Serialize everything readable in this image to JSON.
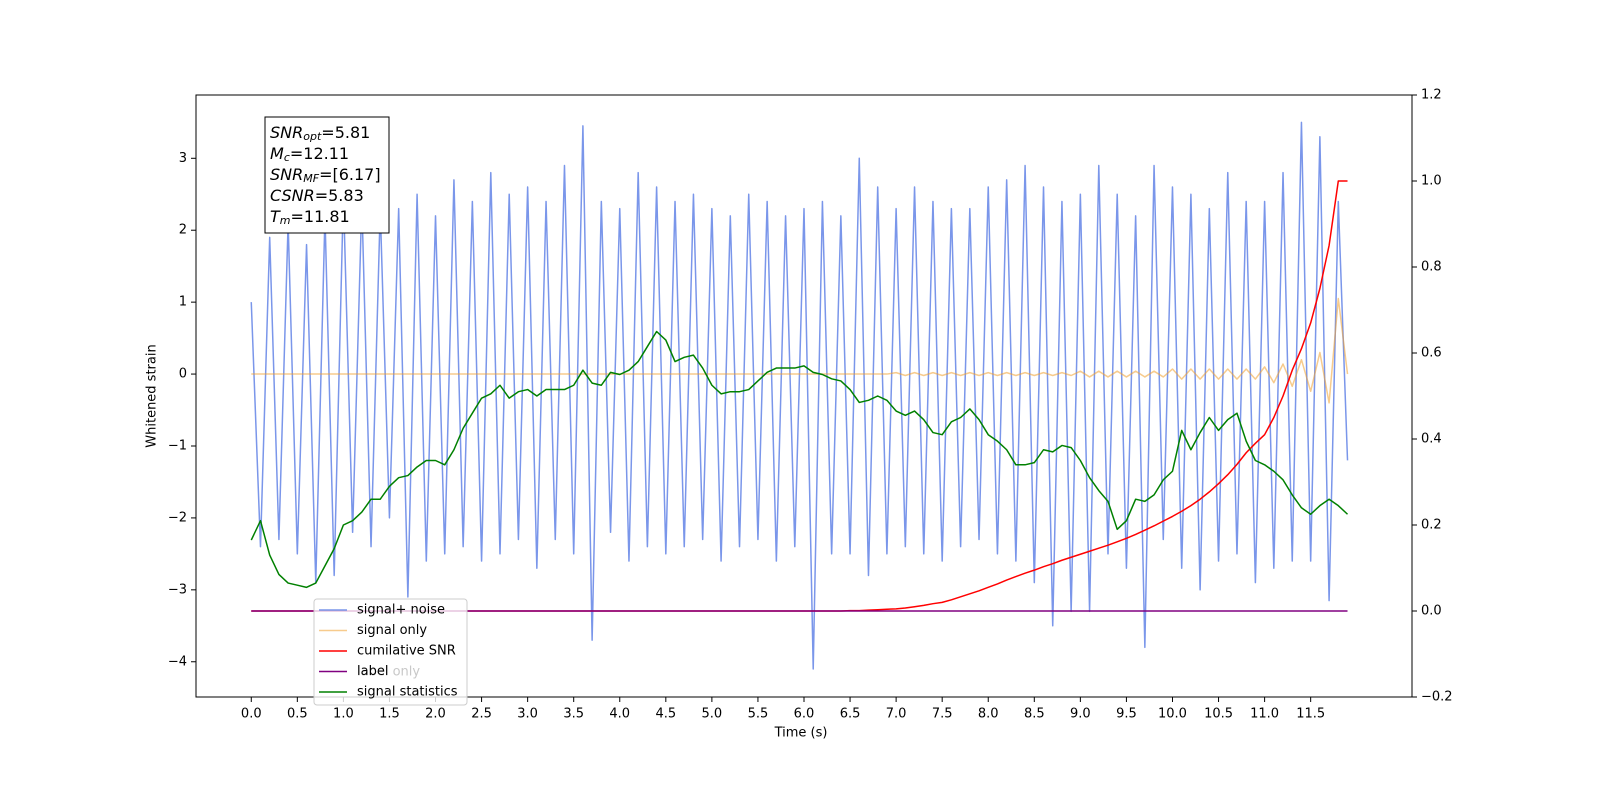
{
  "chart_data": {
    "type": "line",
    "xlabel": "Time (s)",
    "ylabel": "Whitened strain",
    "xlim": [
      -0.6,
      12.6
    ],
    "ylim": [
      -4.49,
      3.88
    ],
    "y2lim": [
      -0.2,
      1.2
    ],
    "xticks": [
      {
        "value": 0,
        "label": "0.0"
      },
      {
        "value": 0.5,
        "label": "0.5"
      },
      {
        "value": 1,
        "label": "1.0"
      },
      {
        "value": 1.5,
        "label": "1.5"
      },
      {
        "value": 2,
        "label": "2.0"
      },
      {
        "value": 2.5,
        "label": "2.5"
      },
      {
        "value": 3,
        "label": "3.0"
      },
      {
        "value": 3.5,
        "label": "3.5"
      },
      {
        "value": 4,
        "label": "4.0"
      },
      {
        "value": 4.5,
        "label": "4.5"
      },
      {
        "value": 5,
        "label": "5.0"
      },
      {
        "value": 5.5,
        "label": "5.5"
      },
      {
        "value": 6,
        "label": "6.0"
      },
      {
        "value": 6.5,
        "label": "6.5"
      },
      {
        "value": 7,
        "label": "7.0"
      },
      {
        "value": 7.5,
        "label": "7.5"
      },
      {
        "value": 8,
        "label": "8.0"
      },
      {
        "value": 8.5,
        "label": "8.5"
      },
      {
        "value": 9,
        "label": "9.0"
      },
      {
        "value": 9.5,
        "label": "9.5"
      },
      {
        "value": 10,
        "label": "10.0"
      },
      {
        "value": 10.5,
        "label": "10.5"
      },
      {
        "value": 11,
        "label": "11.0"
      },
      {
        "value": 11.5,
        "label": "11.5"
      }
    ],
    "yticks": [
      {
        "value": -4,
        "label": "−4"
      },
      {
        "value": -3,
        "label": "−3"
      },
      {
        "value": -2,
        "label": "−2"
      },
      {
        "value": -1,
        "label": "−1"
      },
      0,
      1,
      2,
      3
    ],
    "y2ticks": [
      {
        "value": -0.2,
        "label": "−0.2"
      },
      {
        "value": 0,
        "label": "0.0"
      },
      {
        "value": 0.2,
        "label": "0.2"
      },
      {
        "value": 0.4,
        "label": "0.4"
      },
      {
        "value": 0.6,
        "label": "0.6"
      },
      {
        "value": 0.8,
        "label": "0.8"
      },
      {
        "value": 1,
        "label": "1.0"
      },
      {
        "value": 1.2,
        "label": "1.2"
      }
    ],
    "annotation_box": [
      {
        "main": "SNR",
        "sub": "opt",
        "rest": "=5.81"
      },
      {
        "main": "M",
        "sub": "c",
        "rest": "=12.11"
      },
      {
        "main": "SNR",
        "sub": "MF",
        "rest": "=[6.17]"
      },
      {
        "main": "CSNR",
        "rest": "=5.83"
      },
      {
        "main": "T",
        "sub": "m",
        "rest": "=11.81"
      }
    ],
    "legend_ghost": "label only",
    "x": [
      0,
      0.1,
      0.2,
      0.3,
      0.4,
      0.5,
      0.6,
      0.7,
      0.8,
      0.9,
      1,
      1.1,
      1.2,
      1.3,
      1.4,
      1.5,
      1.6,
      1.7,
      1.8,
      1.9,
      2,
      2.1,
      2.2,
      2.3,
      2.4,
      2.5,
      2.6,
      2.7,
      2.8,
      2.9,
      3,
      3.1,
      3.2,
      3.3,
      3.4,
      3.5,
      3.6,
      3.7,
      3.8,
      3.9,
      4,
      4.1,
      4.2,
      4.3,
      4.4,
      4.5,
      4.6,
      4.7,
      4.8,
      4.9,
      5,
      5.1,
      5.2,
      5.3,
      5.4,
      5.5,
      5.6,
      5.7,
      5.8,
      5.9,
      6,
      6.1,
      6.2,
      6.3,
      6.4,
      6.5,
      6.6,
      6.7,
      6.8,
      6.9,
      7,
      7.1,
      7.2,
      7.3,
      7.4,
      7.5,
      7.6,
      7.7,
      7.8,
      7.9,
      8,
      8.1,
      8.2,
      8.3,
      8.4,
      8.5,
      8.6,
      8.7,
      8.8,
      8.9,
      9,
      9.1,
      9.2,
      9.3,
      9.4,
      9.5,
      9.6,
      9.7,
      9.8,
      9.9,
      10,
      10.1,
      10.2,
      10.3,
      10.4,
      10.5,
      10.6,
      10.7,
      10.8,
      10.9,
      11,
      11.1,
      11.2,
      11.3,
      11.4,
      11.5,
      11.6,
      11.7,
      11.8,
      11.9
    ],
    "series": [
      {
        "name": "signal+ noise",
        "color": "#4169e1",
        "opacity": 0.7,
        "values": [
          1.0,
          -2.4,
          1.9,
          -2.3,
          2.1,
          -2.5,
          1.8,
          -2.9,
          2.2,
          -2.8,
          2.5,
          -2.2,
          2.4,
          -2.4,
          2.3,
          -2.0,
          2.3,
          -3.1,
          2.5,
          -2.6,
          2.2,
          -2.5,
          2.7,
          -2.4,
          2.4,
          -2.6,
          2.8,
          -2.5,
          2.5,
          -2.3,
          2.6,
          -2.7,
          2.4,
          -2.3,
          2.9,
          -2.5,
          3.45,
          -3.7,
          2.4,
          -2.2,
          2.3,
          -2.6,
          2.8,
          -2.4,
          2.6,
          -2.5,
          2.4,
          -2.4,
          2.5,
          -2.3,
          2.3,
          -2.6,
          2.2,
          -2.4,
          2.5,
          -2.3,
          2.4,
          -2.6,
          2.2,
          -2.4,
          2.3,
          -4.1,
          2.4,
          -2.5,
          2.2,
          -2.5,
          3.0,
          -2.8,
          2.6,
          -2.5,
          2.3,
          -2.4,
          2.6,
          -2.5,
          2.4,
          -2.6,
          2.3,
          -2.4,
          2.3,
          -2.3,
          2.6,
          -2.5,
          2.7,
          -2.6,
          2.9,
          -2.9,
          2.6,
          -3.5,
          2.4,
          -3.3,
          2.5,
          -3.3,
          2.9,
          -2.5,
          2.5,
          -2.7,
          2.2,
          -3.8,
          2.9,
          -2.3,
          2.6,
          -2.7,
          2.5,
          -3.0,
          2.3,
          -2.6,
          2.8,
          -2.5,
          2.4,
          -2.9,
          2.4,
          -2.7,
          2.8,
          -2.6,
          3.5,
          -2.6,
          3.3,
          -3.15,
          2.4,
          -1.2
        ]
      },
      {
        "name": "signal only",
        "color": "#f0a030",
        "opacity": 0.55,
        "values": [
          0,
          0,
          0,
          0,
          0,
          0,
          0,
          0,
          0,
          0,
          0,
          0,
          0,
          0,
          0,
          0,
          0,
          0,
          0,
          0,
          0,
          0,
          0,
          0,
          0,
          0,
          0,
          0,
          0,
          0,
          0,
          0,
          0,
          0,
          0,
          0,
          0,
          0,
          0,
          0,
          0,
          0,
          0,
          0,
          0,
          0,
          0,
          0,
          0,
          0,
          0,
          0,
          0,
          0,
          0,
          0,
          0,
          0,
          0,
          0,
          0,
          0,
          0,
          0,
          0,
          0,
          0,
          0,
          0,
          0,
          0.02,
          -0.02,
          0.02,
          -0.02,
          0.02,
          -0.02,
          0.02,
          -0.02,
          0.02,
          -0.02,
          0.02,
          -0.02,
          0.02,
          -0.02,
          0.02,
          -0.02,
          0.02,
          -0.02,
          0.02,
          -0.02,
          0.04,
          -0.04,
          0.04,
          -0.04,
          0.04,
          -0.04,
          0.04,
          -0.04,
          0.04,
          -0.04,
          0.07,
          -0.07,
          0.07,
          -0.07,
          0.07,
          -0.07,
          0.07,
          -0.07,
          0.07,
          -0.07,
          0.1,
          -0.12,
          0.14,
          -0.17,
          0.2,
          -0.24,
          0.3,
          -0.4,
          1.05,
          0
        ]
      },
      {
        "name": "cumilative SNR",
        "color": "#ff0000",
        "axis": "y2",
        "values": [
          0,
          0,
          0,
          0,
          0,
          0,
          0,
          0,
          0,
          0,
          0,
          0,
          0,
          0,
          0,
          0,
          0,
          0,
          0,
          0,
          0,
          0,
          0,
          0,
          0,
          0,
          0,
          0,
          0,
          0,
          0,
          0,
          0,
          0,
          0,
          0,
          0,
          0,
          0,
          0,
          0,
          0,
          0,
          0,
          0,
          0,
          0,
          0,
          0,
          0,
          0,
          0,
          0,
          0,
          0,
          0,
          0,
          0,
          0,
          0,
          0,
          0,
          0,
          0,
          0,
          0.001,
          0.001,
          0.002,
          0.003,
          0.004,
          0.005,
          0.007,
          0.01,
          0.013,
          0.017,
          0.02,
          0.026,
          0.033,
          0.04,
          0.047,
          0.055,
          0.063,
          0.072,
          0.08,
          0.088,
          0.095,
          0.103,
          0.11,
          0.118,
          0.125,
          0.132,
          0.139,
          0.146,
          0.153,
          0.161,
          0.169,
          0.178,
          0.188,
          0.198,
          0.209,
          0.22,
          0.232,
          0.245,
          0.26,
          0.277,
          0.296,
          0.317,
          0.341,
          0.368,
          0.39,
          0.41,
          0.45,
          0.5,
          0.56,
          0.61,
          0.67,
          0.75,
          0.85,
          1.0,
          1.0
        ]
      },
      {
        "name": "label",
        "color": "#800080",
        "axis": "y2",
        "values": [
          0,
          0,
          0,
          0,
          0,
          0,
          0,
          0,
          0,
          0,
          0,
          0,
          0,
          0,
          0,
          0,
          0,
          0,
          0,
          0,
          0,
          0,
          0,
          0,
          0,
          0,
          0,
          0,
          0,
          0,
          0,
          0,
          0,
          0,
          0,
          0,
          0,
          0,
          0,
          0,
          0,
          0,
          0,
          0,
          0,
          0,
          0,
          0,
          0,
          0,
          0,
          0,
          0,
          0,
          0,
          0,
          0,
          0,
          0,
          0,
          0,
          0,
          0,
          0,
          0,
          0,
          0,
          0,
          0,
          0,
          0,
          0,
          0,
          0,
          0,
          0,
          0,
          0,
          0,
          0,
          0,
          0,
          0,
          0,
          0,
          0,
          0,
          0,
          0,
          0,
          0,
          0,
          0,
          0,
          0,
          0,
          0,
          0,
          0,
          0,
          0,
          0,
          0,
          0,
          0,
          0,
          0,
          0,
          0,
          0,
          0,
          0,
          0,
          0,
          0,
          0,
          0,
          0,
          0,
          0
        ]
      },
      {
        "name": "signal statistics",
        "color": "#008000",
        "axis": "y2",
        "values": [
          0.165,
          0.21,
          0.13,
          0.085,
          0.065,
          0.06,
          0.055,
          0.065,
          0.105,
          0.145,
          0.2,
          0.21,
          0.23,
          0.26,
          0.26,
          0.29,
          0.31,
          0.315,
          0.335,
          0.35,
          0.35,
          0.34,
          0.375,
          0.425,
          0.46,
          0.495,
          0.505,
          0.525,
          0.495,
          0.51,
          0.515,
          0.5,
          0.515,
          0.515,
          0.515,
          0.525,
          0.56,
          0.53,
          0.525,
          0.555,
          0.55,
          0.56,
          0.58,
          0.615,
          0.65,
          0.63,
          0.58,
          0.59,
          0.595,
          0.565,
          0.525,
          0.505,
          0.51,
          0.51,
          0.515,
          0.535,
          0.555,
          0.565,
          0.565,
          0.565,
          0.57,
          0.555,
          0.55,
          0.54,
          0.535,
          0.515,
          0.485,
          0.49,
          0.5,
          0.49,
          0.465,
          0.455,
          0.465,
          0.445,
          0.415,
          0.41,
          0.44,
          0.45,
          0.47,
          0.445,
          0.41,
          0.395,
          0.375,
          0.34,
          0.34,
          0.345,
          0.375,
          0.37,
          0.385,
          0.38,
          0.35,
          0.31,
          0.28,
          0.255,
          0.19,
          0.21,
          0.26,
          0.255,
          0.27,
          0.305,
          0.325,
          0.42,
          0.375,
          0.415,
          0.45,
          0.42,
          0.445,
          0.46,
          0.395,
          0.35,
          0.34,
          0.325,
          0.305,
          0.27,
          0.24,
          0.225,
          0.245,
          0.26,
          0.245,
          0.225
        ]
      }
    ]
  }
}
